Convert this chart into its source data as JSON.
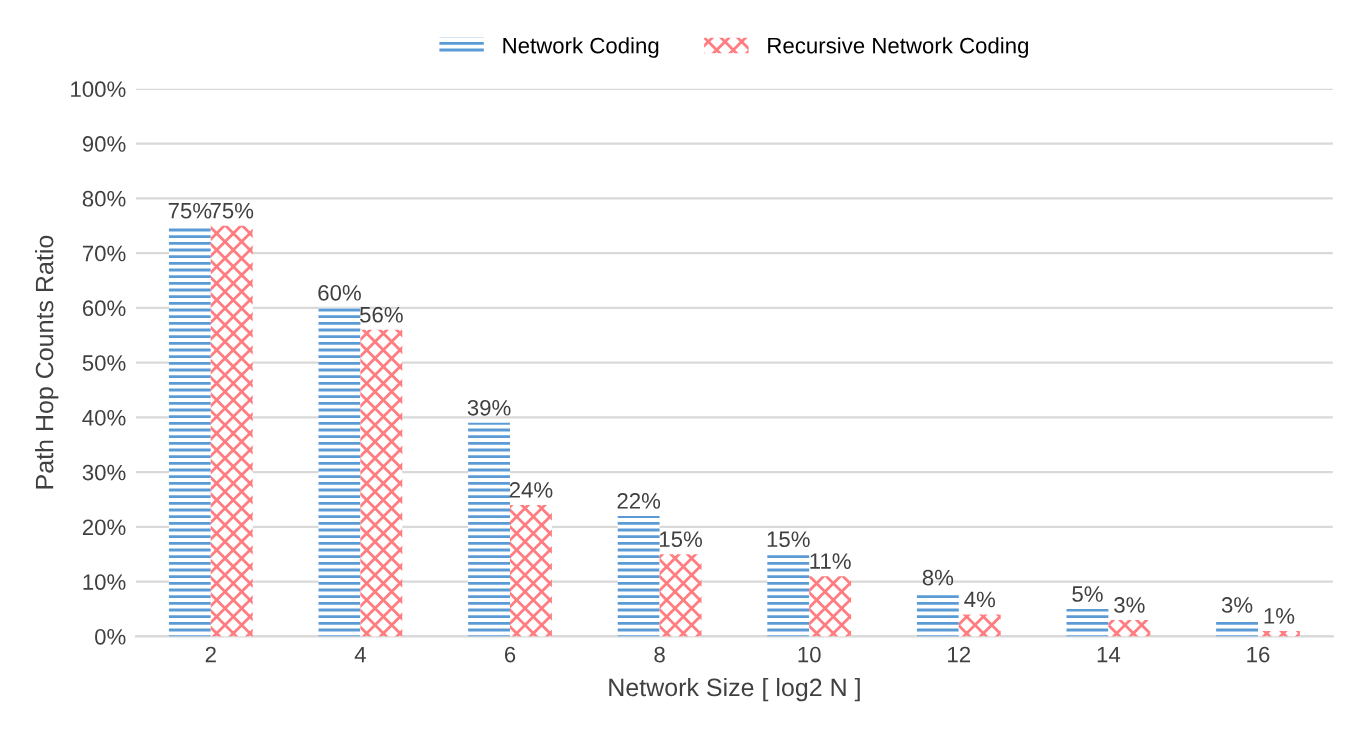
{
  "chart_data": {
    "type": "bar",
    "xlabel": "Network Size [ log2 N ]",
    "ylabel": "Path Hop Counts Ratio",
    "categories": [
      "2",
      "4",
      "6",
      "8",
      "10",
      "12",
      "14",
      "16"
    ],
    "series": [
      {
        "name": "Network Coding",
        "color": "#5b9bd5",
        "values": [
          75,
          60,
          39,
          22,
          15,
          8,
          5,
          3
        ],
        "value_labels": [
          "75%",
          "60%",
          "39%",
          "22%",
          "15%",
          "8%",
          "5%",
          "3%"
        ]
      },
      {
        "name": "Recursive Network Coding",
        "color": "#ff7c80",
        "values": [
          75,
          56,
          24,
          15,
          11,
          4,
          3,
          1
        ],
        "value_labels": [
          "75%",
          "56%",
          "24%",
          "15%",
          "11%",
          "4%",
          "3%",
          "1%"
        ]
      }
    ],
    "ylim": [
      0,
      100
    ],
    "yticks": [
      {
        "value": 0,
        "label": "0%"
      },
      {
        "value": 10,
        "label": "10%"
      },
      {
        "value": 20,
        "label": "20%"
      },
      {
        "value": 30,
        "label": "30%"
      },
      {
        "value": 40,
        "label": "40%"
      },
      {
        "value": 50,
        "label": "50%"
      },
      {
        "value": 60,
        "label": "60%"
      },
      {
        "value": 70,
        "label": "70%"
      },
      {
        "value": 80,
        "label": "80%"
      },
      {
        "value": 90,
        "label": "90%"
      },
      {
        "value": 100,
        "label": "100%"
      }
    ],
    "grid": "y",
    "legend": "top"
  }
}
